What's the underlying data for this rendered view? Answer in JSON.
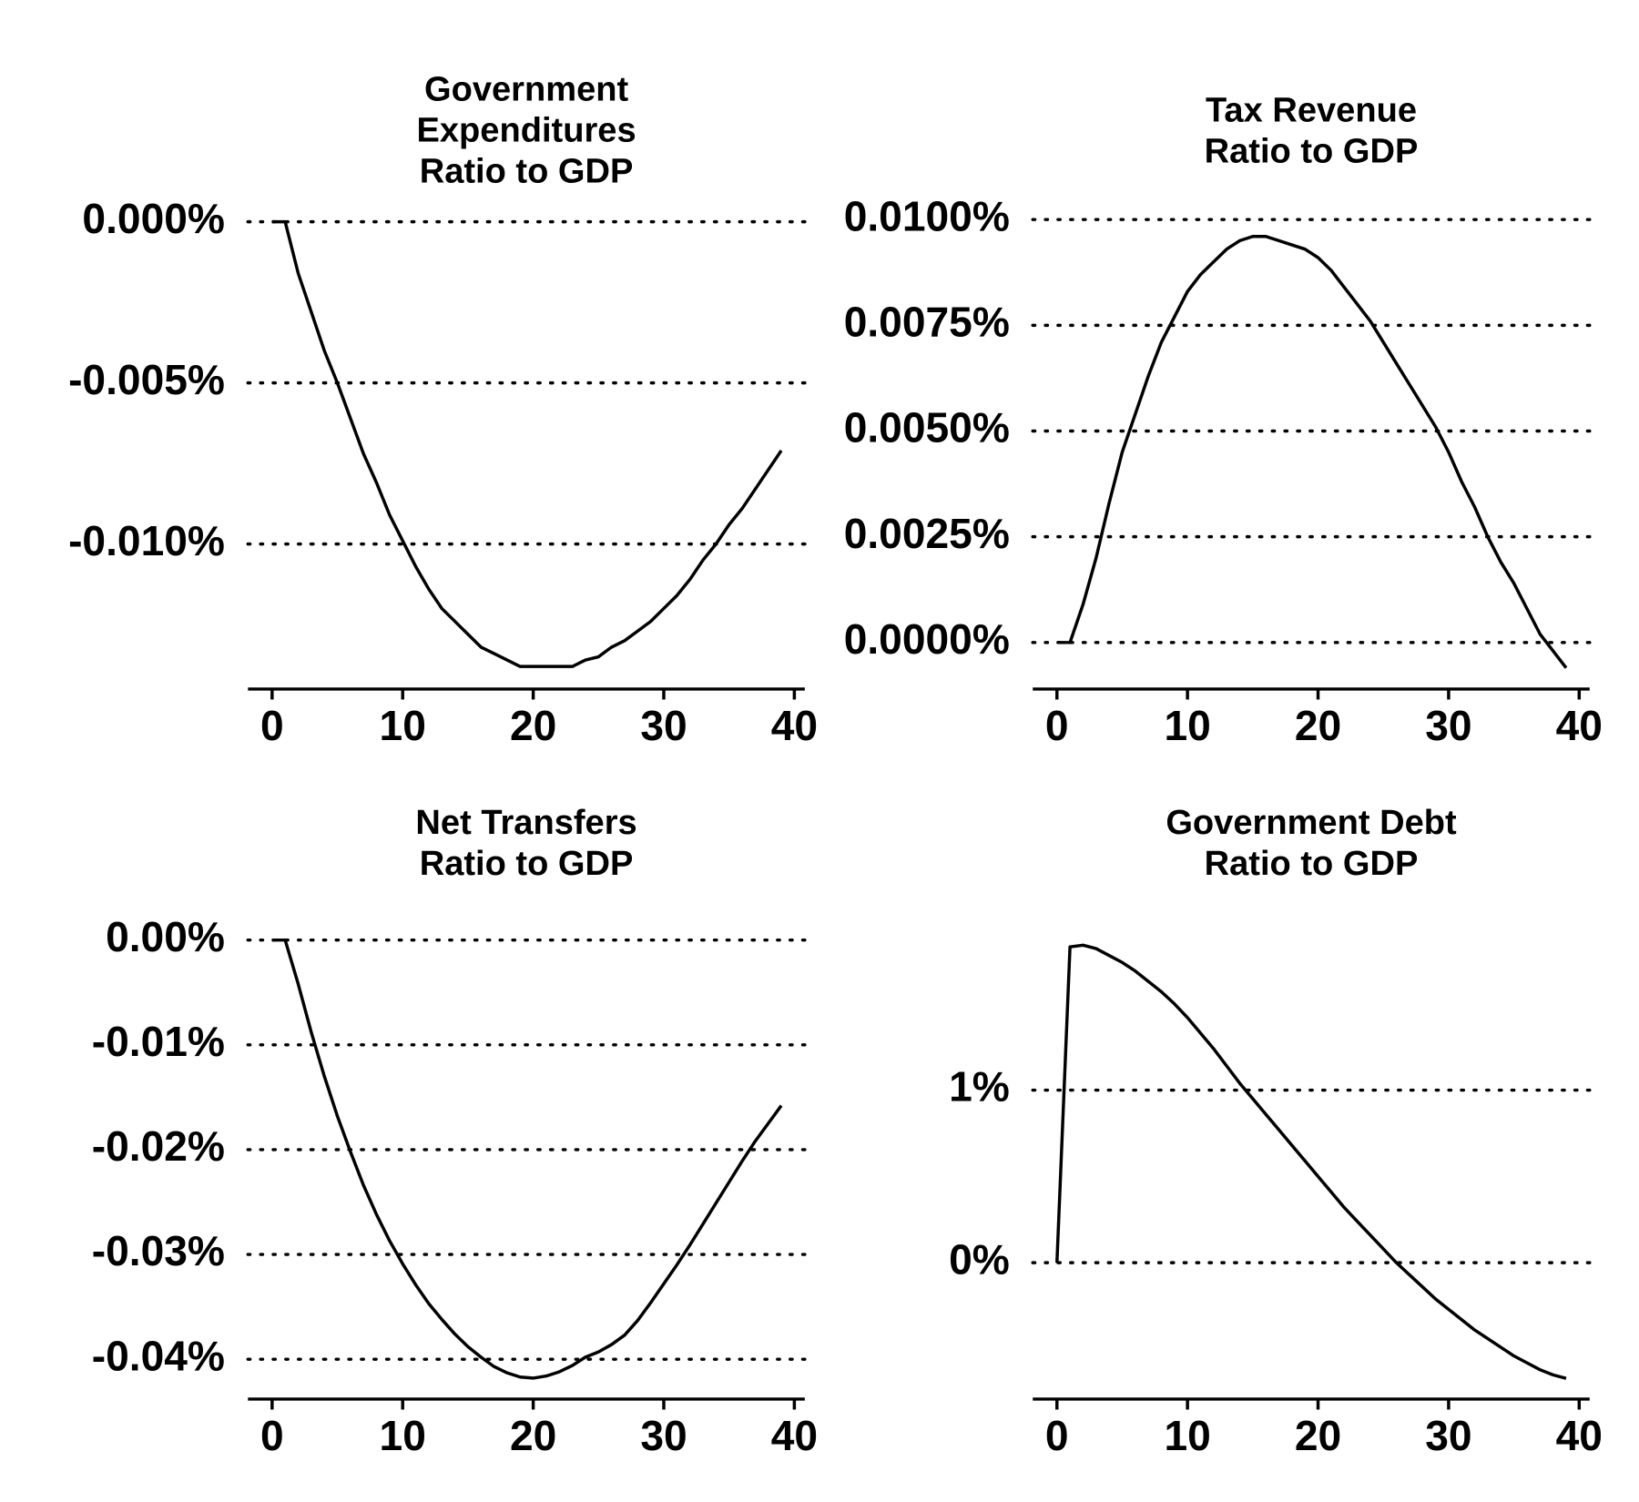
{
  "chart_data": [
    {
      "type": "line",
      "title": [
        "Government",
        "Expenditures",
        "Ratio to GDP"
      ],
      "x": [
        0,
        1,
        2,
        3,
        4,
        5,
        6,
        7,
        8,
        9,
        10,
        11,
        12,
        13,
        14,
        15,
        16,
        17,
        18,
        19,
        20,
        21,
        22,
        23,
        24,
        25,
        26,
        27,
        28,
        29,
        30,
        31,
        32,
        33,
        34,
        35,
        36,
        37,
        38,
        39
      ],
      "values": [
        0,
        0,
        -0.0016,
        -0.0028,
        -0.004,
        -0.005,
        -0.0061,
        -0.0072,
        -0.0081,
        -0.0091,
        -0.0099,
        -0.0107,
        -0.0114,
        -0.012,
        -0.0124,
        -0.0128,
        -0.0132,
        -0.0134,
        -0.0136,
        -0.0138,
        -0.0138,
        -0.0138,
        -0.0138,
        -0.0138,
        -0.0136,
        -0.0135,
        -0.0132,
        -0.013,
        -0.0127,
        -0.0124,
        -0.012,
        -0.0116,
        -0.0111,
        -0.0105,
        -0.01,
        -0.0094,
        -0.0089,
        -0.0083,
        -0.0077,
        -0.0071
      ],
      "color": "#000000",
      "xlim": [
        -1.85,
        40.8
      ],
      "xticks": [
        0,
        10,
        20,
        30,
        40
      ],
      "ylim": [
        -0.0145,
        0.0002
      ],
      "yticks": [
        {
          "value": -0.01,
          "label": "-0.010%"
        },
        {
          "value": -0.005,
          "label": "-0.005%"
        },
        {
          "value": 0,
          "label": "0.000%"
        }
      ],
      "grid": true
    },
    {
      "type": "line",
      "title": [
        "Tax Revenue",
        "Ratio to GDP"
      ],
      "x": [
        0,
        1,
        2,
        3,
        4,
        5,
        6,
        7,
        8,
        9,
        10,
        11,
        12,
        13,
        14,
        15,
        16,
        17,
        18,
        19,
        20,
        21,
        22,
        23,
        24,
        25,
        26,
        27,
        28,
        29,
        30,
        31,
        32,
        33,
        34,
        35,
        36,
        37,
        38,
        39
      ],
      "values": [
        0,
        0,
        0.0009,
        0.002,
        0.0033,
        0.0045,
        0.0054,
        0.0063,
        0.0071,
        0.0077,
        0.0083,
        0.0087,
        0.009,
        0.0093,
        0.0095,
        0.0096,
        0.0096,
        0.0095,
        0.0094,
        0.0093,
        0.0091,
        0.0088,
        0.0084,
        0.008,
        0.0076,
        0.0071,
        0.0066,
        0.0061,
        0.0056,
        0.0051,
        0.0045,
        0.0038,
        0.0032,
        0.0025,
        0.0019,
        0.0014,
        0.0008,
        0.0002,
        -0.0002,
        -0.0006
      ],
      "color": "#000000",
      "xlim": [
        -1.85,
        40.8
      ],
      "xticks": [
        0,
        10,
        20,
        30,
        40
      ],
      "ylim": [
        -0.0011,
        0.0101
      ],
      "yticks": [
        {
          "value": 0,
          "label": "0.0000%"
        },
        {
          "value": 0.0025,
          "label": "0.0025%"
        },
        {
          "value": 0.005,
          "label": "0.0050%"
        },
        {
          "value": 0.0075,
          "label": "0.0075%"
        },
        {
          "value": 0.01,
          "label": "0.0100%"
        }
      ],
      "grid": true
    },
    {
      "type": "line",
      "title": [
        "Net Transfers",
        "Ratio to GDP"
      ],
      "x": [
        0,
        1,
        2,
        3,
        4,
        5,
        6,
        7,
        8,
        9,
        10,
        11,
        12,
        13,
        14,
        15,
        16,
        17,
        18,
        19,
        20,
        21,
        22,
        23,
        24,
        25,
        26,
        27,
        28,
        29,
        30,
        31,
        32,
        33,
        34,
        35,
        36,
        37,
        38,
        39
      ],
      "values": [
        0,
        0,
        -0.0042,
        -0.0088,
        -0.013,
        -0.0168,
        -0.0202,
        -0.0234,
        -0.0262,
        -0.0287,
        -0.0309,
        -0.0329,
        -0.0347,
        -0.0362,
        -0.0376,
        -0.0388,
        -0.0398,
        -0.0407,
        -0.0413,
        -0.0417,
        -0.0418,
        -0.0416,
        -0.0412,
        -0.0406,
        -0.0398,
        -0.0393,
        -0.0386,
        -0.0377,
        -0.0363,
        -0.0346,
        -0.0328,
        -0.031,
        -0.0291,
        -0.0271,
        -0.0251,
        -0.0231,
        -0.0211,
        -0.0192,
        -0.0175,
        -0.0158
      ],
      "color": "#000000",
      "xlim": [
        -1.85,
        40.8
      ],
      "xticks": [
        0,
        10,
        20,
        30,
        40
      ],
      "ylim": [
        -0.0438,
        0.0005
      ],
      "yticks": [
        {
          "value": -0.04,
          "label": "-0.04%"
        },
        {
          "value": -0.03,
          "label": "-0.03%"
        },
        {
          "value": -0.02,
          "label": "-0.02%"
        },
        {
          "value": -0.01,
          "label": "-0.01%"
        },
        {
          "value": 0,
          "label": "0.00%"
        }
      ],
      "grid": true
    },
    {
      "type": "line",
      "title": [
        "Government Debt",
        "Ratio to GDP"
      ],
      "x": [
        0,
        1,
        2,
        3,
        4,
        5,
        6,
        7,
        8,
        9,
        10,
        11,
        12,
        13,
        14,
        15,
        16,
        17,
        18,
        19,
        20,
        21,
        22,
        23,
        24,
        25,
        26,
        27,
        28,
        29,
        30,
        31,
        32,
        33,
        34,
        35,
        36,
        37,
        38,
        39
      ],
      "values": [
        0,
        1.83,
        1.84,
        1.82,
        1.78,
        1.74,
        1.69,
        1.63,
        1.57,
        1.5,
        1.42,
        1.33,
        1.24,
        1.14,
        1.04,
        0.95,
        0.86,
        0.77,
        0.68,
        0.59,
        0.5,
        0.41,
        0.32,
        0.24,
        0.16,
        0.08,
        0.0,
        -0.07,
        -0.14,
        -0.21,
        -0.27,
        -0.33,
        -0.39,
        -0.44,
        -0.49,
        -0.54,
        -0.58,
        -0.62,
        -0.65,
        -0.67
      ],
      "color": "#000000",
      "xlim": [
        -1.85,
        40.8
      ],
      "xticks": [
        0,
        10,
        20,
        30,
        40
      ],
      "ylim": [
        -0.79,
        1.9
      ],
      "yticks": [
        {
          "value": 0,
          "label": "0%"
        },
        {
          "value": 1,
          "label": "1%"
        }
      ],
      "grid": true
    }
  ]
}
